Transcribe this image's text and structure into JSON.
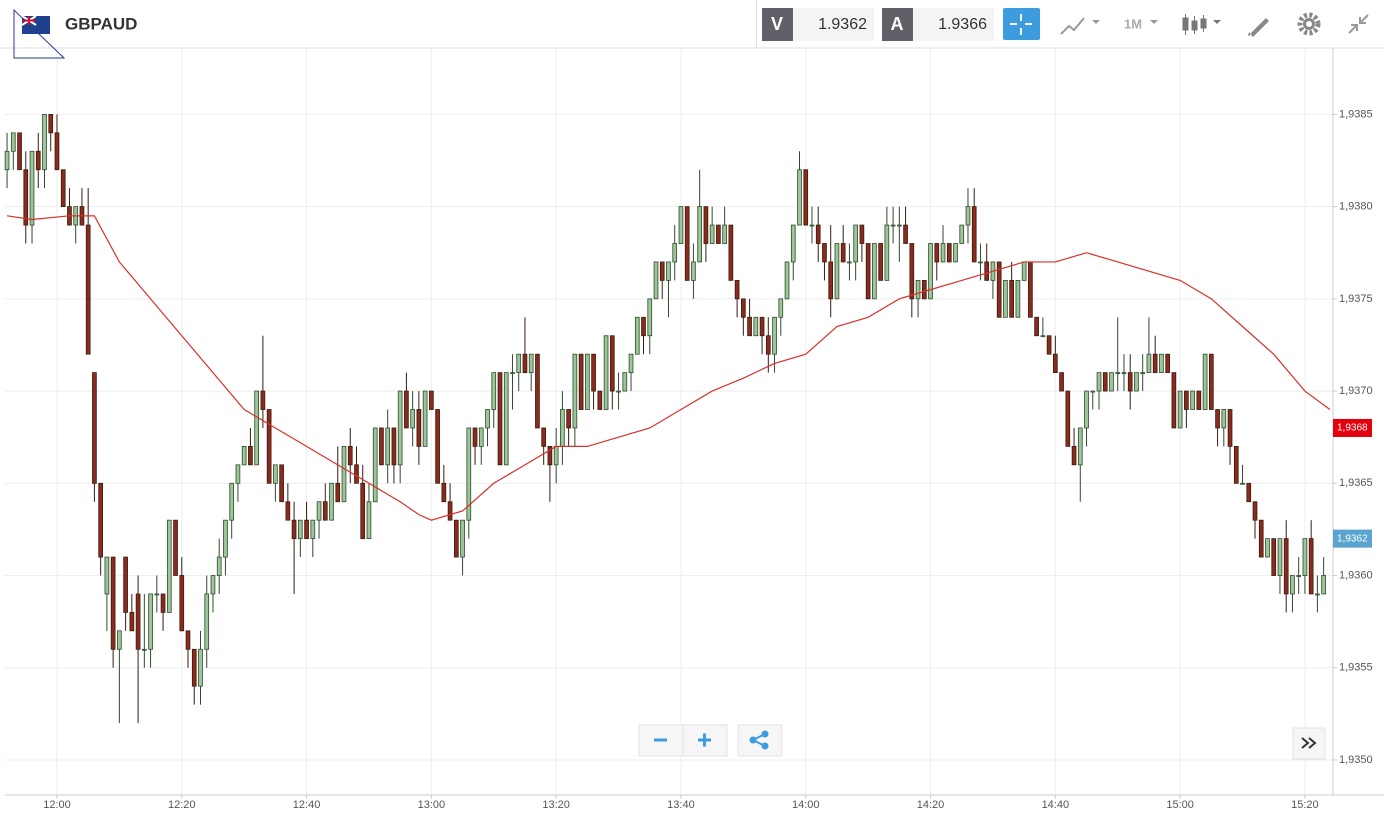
{
  "toolbar": {
    "symbol": "GBPAUD",
    "bid_label": "V",
    "bid": 1.9362,
    "ask_label": "A",
    "ask": 1.9366,
    "interval": "1M"
  },
  "chart_data": {
    "type": "candlestick",
    "up_color": "#9cc698",
    "down_color": "#8b2b1c",
    "grid": true,
    "xlim": [
      711.67,
      924.5
    ],
    "ylim": [
      1.93481,
      1.93886
    ],
    "xticks": [
      {
        "value": 720,
        "label": "12:00"
      },
      {
        "value": 740,
        "label": "12:20"
      },
      {
        "value": 760,
        "label": "12:40"
      },
      {
        "value": 780,
        "label": "13:00"
      },
      {
        "value": 800,
        "label": "13:20"
      },
      {
        "value": 820,
        "label": "13:40"
      },
      {
        "value": 840,
        "label": "14:00"
      },
      {
        "value": 860,
        "label": "14:20"
      },
      {
        "value": 880,
        "label": "14:40"
      },
      {
        "value": 900,
        "label": "15:00"
      },
      {
        "value": 920,
        "label": "15:20"
      }
    ],
    "yticks": [
      {
        "value": 1.935,
        "label": "1,9350"
      },
      {
        "value": 1.9355,
        "label": "1,9355"
      },
      {
        "value": 1.936,
        "label": "1,9360"
      },
      {
        "value": 1.9365,
        "label": "1,9365"
      },
      {
        "value": 1.937,
        "label": "1,9370"
      },
      {
        "value": 1.9375,
        "label": "1,9375"
      },
      {
        "value": 1.938,
        "label": "1,9380"
      },
      {
        "value": 1.9385,
        "label": "1,9385"
      }
    ],
    "x": [
      712,
      713,
      714,
      715,
      716,
      717,
      718,
      719,
      720,
      721,
      722,
      723,
      724,
      725,
      726,
      727,
      728,
      729,
      730,
      731,
      732,
      733,
      734,
      735,
      736,
      737,
      738,
      739,
      740,
      741,
      742,
      743,
      744,
      745,
      746,
      747,
      748,
      749,
      750,
      751,
      752,
      753,
      754,
      755,
      756,
      757,
      758,
      759,
      760,
      761,
      762,
      763,
      764,
      765,
      766,
      767,
      768,
      769,
      770,
      771,
      772,
      773,
      774,
      775,
      776,
      777,
      778,
      779,
      780,
      781,
      782,
      783,
      784,
      785,
      786,
      787,
      788,
      789,
      790,
      791,
      792,
      793,
      794,
      795,
      796,
      797,
      798,
      799,
      800,
      801,
      802,
      803,
      804,
      805,
      806,
      807,
      808,
      809,
      810,
      811,
      812,
      813,
      814,
      815,
      816,
      817,
      818,
      819,
      820,
      821,
      822,
      823,
      824,
      825,
      826,
      827,
      828,
      829,
      830,
      831,
      832,
      833,
      834,
      835,
      836,
      837,
      838,
      839,
      840,
      841,
      842,
      843,
      844,
      845,
      846,
      847,
      848,
      849,
      850,
      851,
      852,
      853,
      854,
      855,
      856,
      857,
      858,
      859,
      860,
      861,
      862,
      863,
      864,
      865,
      866,
      867,
      868,
      869,
      870,
      871,
      872,
      873,
      874,
      875,
      876,
      877,
      878,
      879,
      880,
      881,
      882,
      883,
      884,
      885,
      886,
      887,
      888,
      889,
      890,
      891,
      892,
      893,
      894,
      895,
      896,
      897,
      898,
      899,
      900,
      901,
      902,
      903,
      904,
      905,
      906,
      907,
      908,
      909,
      910,
      911,
      912,
      913,
      914,
      915,
      916,
      917,
      918,
      919,
      920,
      921,
      922,
      923
    ],
    "open": [
      1.9382,
      1.9383,
      1.9384,
      1.9382,
      1.9379,
      1.9383,
      1.9382,
      1.9385,
      1.9384,
      1.9382,
      1.938,
      1.9379,
      1.938,
      1.9379,
      1.9371,
      1.9365,
      1.9359,
      1.9361,
      1.9356,
      1.9361,
      1.9358,
      1.9359,
      1.9356,
      1.9356,
      1.9359,
      1.9359,
      1.9358,
      1.9363,
      1.936,
      1.9357,
      1.9356,
      1.9354,
      1.9356,
      1.9359,
      1.936,
      1.9361,
      1.9363,
      1.9365,
      1.9366,
      1.9367,
      1.9366,
      1.937,
      1.9369,
      1.9365,
      1.9366,
      1.9364,
      1.9363,
      1.9362,
      1.9363,
      1.9362,
      1.9363,
      1.9364,
      1.9363,
      1.9365,
      1.9364,
      1.9367,
      1.9366,
      1.9365,
      1.9362,
      1.9364,
      1.9368,
      1.9366,
      1.9368,
      1.9366,
      1.937,
      1.9368,
      1.9369,
      1.9367,
      1.937,
      1.9369,
      1.9365,
      1.9364,
      1.9363,
      1.9361,
      1.9363,
      1.9368,
      1.9367,
      1.9368,
      1.9369,
      1.9371,
      1.9366,
      1.9371,
      1.9371,
      1.9372,
      1.9371,
      1.9372,
      1.9368,
      1.9367,
      1.9366,
      1.9367,
      1.9369,
      1.9368,
      1.9372,
      1.9369,
      1.9372,
      1.937,
      1.9369,
      1.9373,
      1.937,
      1.937,
      1.9371,
      1.9372,
      1.9374,
      1.9373,
      1.9375,
      1.9377,
      1.9376,
      1.9377,
      1.9378,
      1.938,
      1.9376,
      1.9377,
      1.938,
      1.9378,
      1.9379,
      1.9378,
      1.9379,
      1.9376,
      1.9375,
      1.9374,
      1.9373,
      1.9374,
      1.9373,
      1.9372,
      1.9374,
      1.9375,
      1.9377,
      1.9379,
      1.9382,
      1.9379,
      1.9379,
      1.9378,
      1.9377,
      1.9375,
      1.9378,
      1.9377,
      1.9377,
      1.9379,
      1.9378,
      1.9375,
      1.9378,
      1.9376,
      1.9379,
      1.9379,
      1.9379,
      1.9378,
      1.9375,
      1.9376,
      1.9375,
      1.9378,
      1.9377,
      1.9378,
      1.9377,
      1.9378,
      1.9379,
      1.938,
      1.9377,
      1.9377,
      1.9376,
      1.9377,
      1.9374,
      1.9376,
      1.9374,
      1.9376,
      1.9377,
      1.9374,
      1.9373,
      1.9373,
      1.9372,
      1.9371,
      1.937,
      1.9367,
      1.9366,
      1.9368,
      1.937,
      1.937,
      1.9371,
      1.937,
      1.9371,
      1.9371,
      1.9371,
      1.937,
      1.9371,
      1.9371,
      1.9372,
      1.9371,
      1.9372,
      1.9371,
      1.9368,
      1.937,
      1.9369,
      1.937,
      1.9369,
      1.9372,
      1.9369,
      1.9368,
      1.9369,
      1.9367,
      1.9365,
      1.9365,
      1.9364,
      1.9363,
      1.9361,
      1.9362,
      1.936,
      1.9362,
      1.9359,
      1.936,
      1.936,
      1.9362,
      1.9359,
      1.9359
    ],
    "high": [
      1.9384,
      1.9384,
      1.9384,
      1.9383,
      1.9383,
      1.9384,
      1.9385,
      1.9385,
      1.9385,
      1.9382,
      1.9381,
      1.938,
      1.9381,
      1.9381,
      1.9371,
      1.9365,
      1.9361,
      1.9361,
      1.9357,
      1.9361,
      1.9359,
      1.936,
      1.9359,
      1.9359,
      1.936,
      1.9359,
      1.9363,
      1.9363,
      1.9361,
      1.9357,
      1.9356,
      1.9357,
      1.936,
      1.936,
      1.9362,
      1.9363,
      1.9365,
      1.9366,
      1.9367,
      1.9368,
      1.937,
      1.9373,
      1.9369,
      1.9366,
      1.9366,
      1.9365,
      1.9364,
      1.9363,
      1.9364,
      1.9363,
      1.9364,
      1.9365,
      1.9365,
      1.9367,
      1.9367,
      1.9368,
      1.9367,
      1.9366,
      1.9365,
      1.9368,
      1.9368,
      1.9369,
      1.9368,
      1.937,
      1.9371,
      1.937,
      1.937,
      1.937,
      1.937,
      1.9369,
      1.9366,
      1.9365,
      1.9363,
      1.9363,
      1.9368,
      1.9368,
      1.9368,
      1.9369,
      1.9371,
      1.9371,
      1.9371,
      1.9372,
      1.9372,
      1.9374,
      1.9372,
      1.9372,
      1.9368,
      1.9367,
      1.9368,
      1.937,
      1.9369,
      1.9372,
      1.9372,
      1.9372,
      1.9372,
      1.937,
      1.9373,
      1.9373,
      1.9371,
      1.9371,
      1.9372,
      1.9374,
      1.9374,
      1.9375,
      1.9377,
      1.9377,
      1.9377,
      1.9379,
      1.938,
      1.938,
      1.9378,
      1.9382,
      1.938,
      1.938,
      1.9379,
      1.938,
      1.9379,
      1.9376,
      1.9375,
      1.9375,
      1.9374,
      1.9374,
      1.9374,
      1.9374,
      1.9375,
      1.9377,
      1.9379,
      1.9383,
      1.9382,
      1.938,
      1.938,
      1.9378,
      1.9379,
      1.9378,
      1.9379,
      1.9378,
      1.9379,
      1.9379,
      1.9378,
      1.9378,
      1.9378,
      1.938,
      1.938,
      1.938,
      1.938,
      1.9378,
      1.9376,
      1.9376,
      1.9378,
      1.9378,
      1.9379,
      1.9378,
      1.9378,
      1.9379,
      1.9381,
      1.9381,
      1.9378,
      1.9378,
      1.9377,
      1.9377,
      1.9376,
      1.9377,
      1.9376,
      1.9377,
      1.9377,
      1.9374,
      1.9374,
      1.9373,
      1.9373,
      1.9371,
      1.937,
      1.9368,
      1.9368,
      1.937,
      1.937,
      1.9371,
      1.9371,
      1.9371,
      1.9374,
      1.9372,
      1.9372,
      1.9371,
      1.9372,
      1.9374,
      1.9373,
      1.9372,
      1.9372,
      1.9371,
      1.937,
      1.937,
      1.937,
      1.937,
      1.9372,
      1.9372,
      1.9369,
      1.9369,
      1.9369,
      1.9367,
      1.9366,
      1.9365,
      1.9364,
      1.9363,
      1.9362,
      1.9362,
      1.9362,
      1.9363,
      1.936,
      1.9361,
      1.9362,
      1.9363,
      1.936,
      1.9361
    ],
    "low": [
      1.9381,
      1.9382,
      1.9382,
      1.9378,
      1.9378,
      1.9381,
      1.9381,
      1.9383,
      1.9382,
      1.938,
      1.9379,
      1.9378,
      1.9379,
      1.9372,
      1.9364,
      1.936,
      1.9357,
      1.9355,
      1.9352,
      1.9357,
      1.9357,
      1.9352,
      1.9355,
      1.9355,
      1.9358,
      1.9357,
      1.9358,
      1.936,
      1.9357,
      1.9355,
      1.9353,
      1.9353,
      1.9355,
      1.9358,
      1.9359,
      1.936,
      1.9362,
      1.9364,
      1.9366,
      1.9366,
      1.9366,
      1.9368,
      1.9365,
      1.9364,
      1.9364,
      1.9363,
      1.9359,
      1.9361,
      1.9362,
      1.9361,
      1.9362,
      1.9363,
      1.9363,
      1.9364,
      1.9364,
      1.9365,
      1.9365,
      1.9362,
      1.9362,
      1.9364,
      1.9366,
      1.9365,
      1.9365,
      1.9365,
      1.9368,
      1.9367,
      1.9366,
      1.9367,
      1.9369,
      1.9365,
      1.9364,
      1.9363,
      1.9361,
      1.936,
      1.9362,
      1.9366,
      1.9366,
      1.9367,
      1.9368,
      1.9366,
      1.9366,
      1.9369,
      1.937,
      1.9371,
      1.937,
      1.9368,
      1.9366,
      1.9364,
      1.9365,
      1.9366,
      1.9367,
      1.9367,
      1.9369,
      1.9369,
      1.9369,
      1.9369,
      1.9369,
      1.9369,
      1.9369,
      1.937,
      1.937,
      1.9372,
      1.9372,
      1.9372,
      1.9375,
      1.9375,
      1.9374,
      1.9376,
      1.9378,
      1.9376,
      1.9375,
      1.9377,
      1.9377,
      1.9378,
      1.9378,
      1.9378,
      1.9376,
      1.9374,
      1.9373,
      1.9373,
      1.9373,
      1.9372,
      1.9371,
      1.9371,
      1.9373,
      1.9375,
      1.9376,
      1.9379,
      1.9379,
      1.9378,
      1.9377,
      1.9376,
      1.9374,
      1.9375,
      1.9377,
      1.9376,
      1.9376,
      1.9377,
      1.9375,
      1.9375,
      1.9376,
      1.9376,
      1.9378,
      1.9377,
      1.9378,
      1.9374,
      1.9374,
      1.9375,
      1.9375,
      1.9376,
      1.9377,
      1.9377,
      1.9377,
      1.9378,
      1.9378,
      1.9377,
      1.9376,
      1.9376,
      1.9375,
      1.9374,
      1.9374,
      1.9374,
      1.9374,
      1.9376,
      1.9374,
      1.9373,
      1.9373,
      1.9372,
      1.9371,
      1.937,
      1.9367,
      1.9366,
      1.9364,
      1.9367,
      1.9369,
      1.9369,
      1.937,
      1.937,
      1.937,
      1.937,
      1.9369,
      1.937,
      1.937,
      1.9371,
      1.9371,
      1.9371,
      1.9371,
      1.9368,
      1.9368,
      1.9368,
      1.9369,
      1.9369,
      1.9369,
      1.9369,
      1.9367,
      1.9367,
      1.9366,
      1.9365,
      1.9365,
      1.9364,
      1.9362,
      1.9361,
      1.9361,
      1.936,
      1.9359,
      1.9358,
      1.9358,
      1.9359,
      1.9359,
      1.9359,
      1.9358,
      1.9359
    ],
    "close": [
      1.9383,
      1.9384,
      1.9382,
      1.9379,
      1.9383,
      1.9382,
      1.9385,
      1.9384,
      1.9382,
      1.938,
      1.9379,
      1.938,
      1.9379,
      1.9372,
      1.9365,
      1.9361,
      1.9361,
      1.9356,
      1.9357,
      1.9358,
      1.9357,
      1.9356,
      1.9356,
      1.9359,
      1.9359,
      1.9358,
      1.9363,
      1.936,
      1.9357,
      1.9356,
      1.9354,
      1.9356,
      1.9359,
      1.936,
      1.9361,
      1.9363,
      1.9365,
      1.9366,
      1.9367,
      1.9366,
      1.937,
      1.9369,
      1.9365,
      1.9366,
      1.9364,
      1.9363,
      1.9362,
      1.9363,
      1.9362,
      1.9363,
      1.9364,
      1.9363,
      1.9365,
      1.9364,
      1.9367,
      1.9366,
      1.9365,
      1.9362,
      1.9364,
      1.9368,
      1.9366,
      1.9368,
      1.9366,
      1.937,
      1.9368,
      1.9369,
      1.9367,
      1.937,
      1.9369,
      1.9365,
      1.9364,
      1.9363,
      1.9361,
      1.9363,
      1.9368,
      1.9367,
      1.9368,
      1.9369,
      1.9371,
      1.9366,
      1.9371,
      1.9371,
      1.9372,
      1.9371,
      1.9372,
      1.9368,
      1.9367,
      1.9366,
      1.9367,
      1.9369,
      1.9368,
      1.9372,
      1.9369,
      1.9372,
      1.937,
      1.9369,
      1.9373,
      1.937,
      1.937,
      1.9371,
      1.9372,
      1.9374,
      1.9373,
      1.9375,
      1.9377,
      1.9376,
      1.9377,
      1.9378,
      1.938,
      1.9376,
      1.9377,
      1.938,
      1.9378,
      1.9379,
      1.9378,
      1.9379,
      1.9376,
      1.9375,
      1.9374,
      1.9373,
      1.9374,
      1.9373,
      1.9372,
      1.9374,
      1.9375,
      1.9377,
      1.9379,
      1.9382,
      1.9379,
      1.9379,
      1.9378,
      1.9377,
      1.9375,
      1.9378,
      1.9377,
      1.9377,
      1.9379,
      1.9378,
      1.9375,
      1.9378,
      1.9376,
      1.9379,
      1.9379,
      1.9379,
      1.9378,
      1.9375,
      1.9376,
      1.9375,
      1.9378,
      1.9377,
      1.9378,
      1.9377,
      1.9378,
      1.9379,
      1.938,
      1.9377,
      1.9377,
      1.9376,
      1.9377,
      1.9374,
      1.9376,
      1.9374,
      1.9376,
      1.9377,
      1.9374,
      1.9373,
      1.9373,
      1.9372,
      1.9371,
      1.937,
      1.9367,
      1.9366,
      1.9368,
      1.937,
      1.937,
      1.9371,
      1.937,
      1.9371,
      1.9371,
      1.9371,
      1.937,
      1.9371,
      1.9371,
      1.9372,
      1.9371,
      1.9372,
      1.9371,
      1.9368,
      1.937,
      1.9369,
      1.937,
      1.9369,
      1.9372,
      1.9369,
      1.9368,
      1.9369,
      1.9367,
      1.9365,
      1.9365,
      1.9364,
      1.9363,
      1.9361,
      1.9362,
      1.936,
      1.9362,
      1.9359,
      1.936,
      1.936,
      1.9362,
      1.9359,
      1.9359,
      1.936
    ],
    "moving_average": {
      "color": "#d9302a",
      "x": [
        712,
        716,
        722,
        726,
        730,
        735,
        740,
        745,
        750,
        755,
        760,
        765,
        770,
        775,
        778,
        780,
        785,
        790,
        795,
        800,
        805,
        810,
        815,
        820,
        825,
        830,
        835,
        840,
        845,
        850,
        855,
        860,
        865,
        870,
        875,
        880,
        885,
        890,
        895,
        900,
        905,
        910,
        915,
        920,
        924
      ],
      "values": [
        1.93795,
        1.93793,
        1.93795,
        1.93795,
        1.9377,
        1.9375,
        1.9373,
        1.9371,
        1.9369,
        1.9368,
        1.9367,
        1.9366,
        1.9365,
        1.9364,
        1.93633,
        1.9363,
        1.93635,
        1.9365,
        1.9366,
        1.9367,
        1.9367,
        1.93675,
        1.9368,
        1.9369,
        1.937,
        1.93707,
        1.93715,
        1.9372,
        1.93735,
        1.9374,
        1.9375,
        1.93755,
        1.9376,
        1.93765,
        1.9377,
        1.9377,
        1.93775,
        1.9377,
        1.93765,
        1.9376,
        1.9375,
        1.93735,
        1.9372,
        1.937,
        1.9369
      ]
    },
    "price_markers": [
      {
        "value": 1.9368,
        "label": "1,9368",
        "color": "#e3000f"
      },
      {
        "value": 1.9362,
        "label": "1,9362",
        "color": "#5ba4cf"
      }
    ]
  }
}
